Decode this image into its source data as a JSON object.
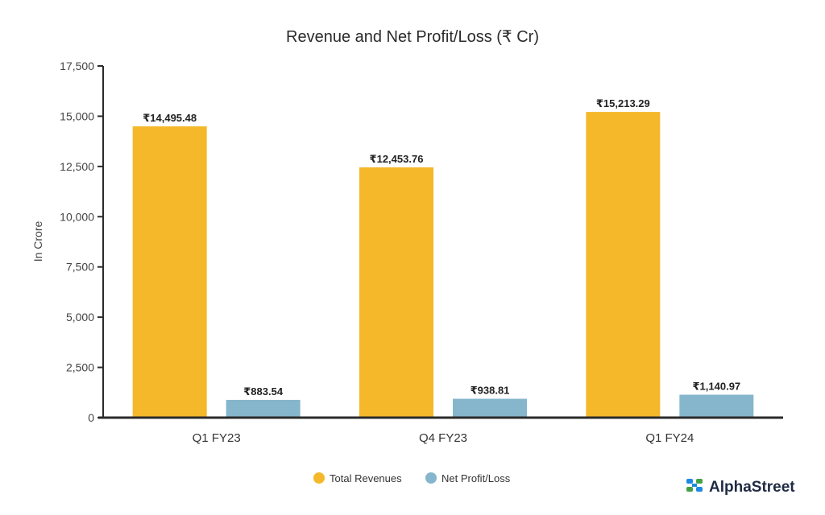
{
  "chart_data": {
    "type": "bar",
    "title": "Revenue and Net Profit/Loss (₹ Cr)",
    "xlabel": "",
    "ylabel": "In Crore",
    "ylim": [
      0,
      17500
    ],
    "yticks": [
      0,
      2500,
      5000,
      7500,
      10000,
      12500,
      15000,
      17500
    ],
    "ytick_labels": [
      "0",
      "2,500",
      "5,000",
      "7,500",
      "10,000",
      "12,500",
      "15,000",
      "17,500"
    ],
    "categories": [
      "Q1 FY23",
      "Q4 FY23",
      "Q1 FY24"
    ],
    "series": [
      {
        "name": "Total Revenues",
        "color": "#F5B82A",
        "values": [
          14495.48,
          12453.76,
          15213.29
        ],
        "labels": [
          "₹14,495.48",
          "₹12,453.76",
          "₹15,213.29"
        ]
      },
      {
        "name": "Net Profit/Loss",
        "color": "#85B6CC",
        "values": [
          883.54,
          938.81,
          1140.97
        ],
        "labels": [
          "₹883.54",
          "₹938.81",
          "₹1,140.97"
        ]
      }
    ],
    "grid": false,
    "legend_position": "bottom-center"
  },
  "brand": {
    "name": "AlphaStreet",
    "icon": "alphastreet-logo-icon",
    "colors": [
      "#1E88E5",
      "#43A047"
    ]
  }
}
